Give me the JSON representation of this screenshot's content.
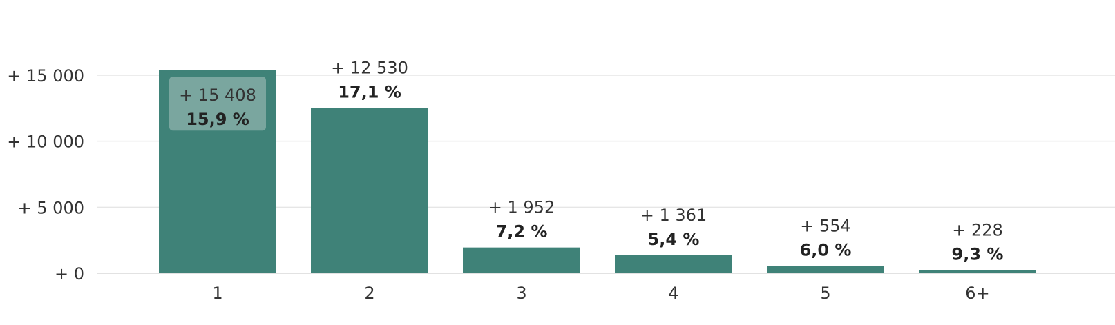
{
  "chart_data": {
    "type": "bar",
    "categories": [
      "1",
      "2",
      "3",
      "4",
      "5",
      "6+"
    ],
    "values": [
      15408,
      12530,
      1952,
      1361,
      554,
      228
    ],
    "value_labels": [
      "+ 15 408",
      "+ 12 530",
      "+ 1 952",
      "+ 1 361",
      "+ 554",
      "+ 228"
    ],
    "percent_labels": [
      "15,9 %",
      "17,1 %",
      "7,2 %",
      "5,4 %",
      "6,0 %",
      "9,3 %"
    ],
    "y_ticks": [
      0,
      5000,
      10000,
      15000
    ],
    "y_tick_labels": [
      "+ 0",
      "+ 5 000",
      "+ 10 000",
      "+ 15 000"
    ],
    "ylim": [
      0,
      18500
    ],
    "grid": true,
    "xlabel": "",
    "bar_color": "#3f8278",
    "highlight_box_color": "#7aa69f"
  }
}
